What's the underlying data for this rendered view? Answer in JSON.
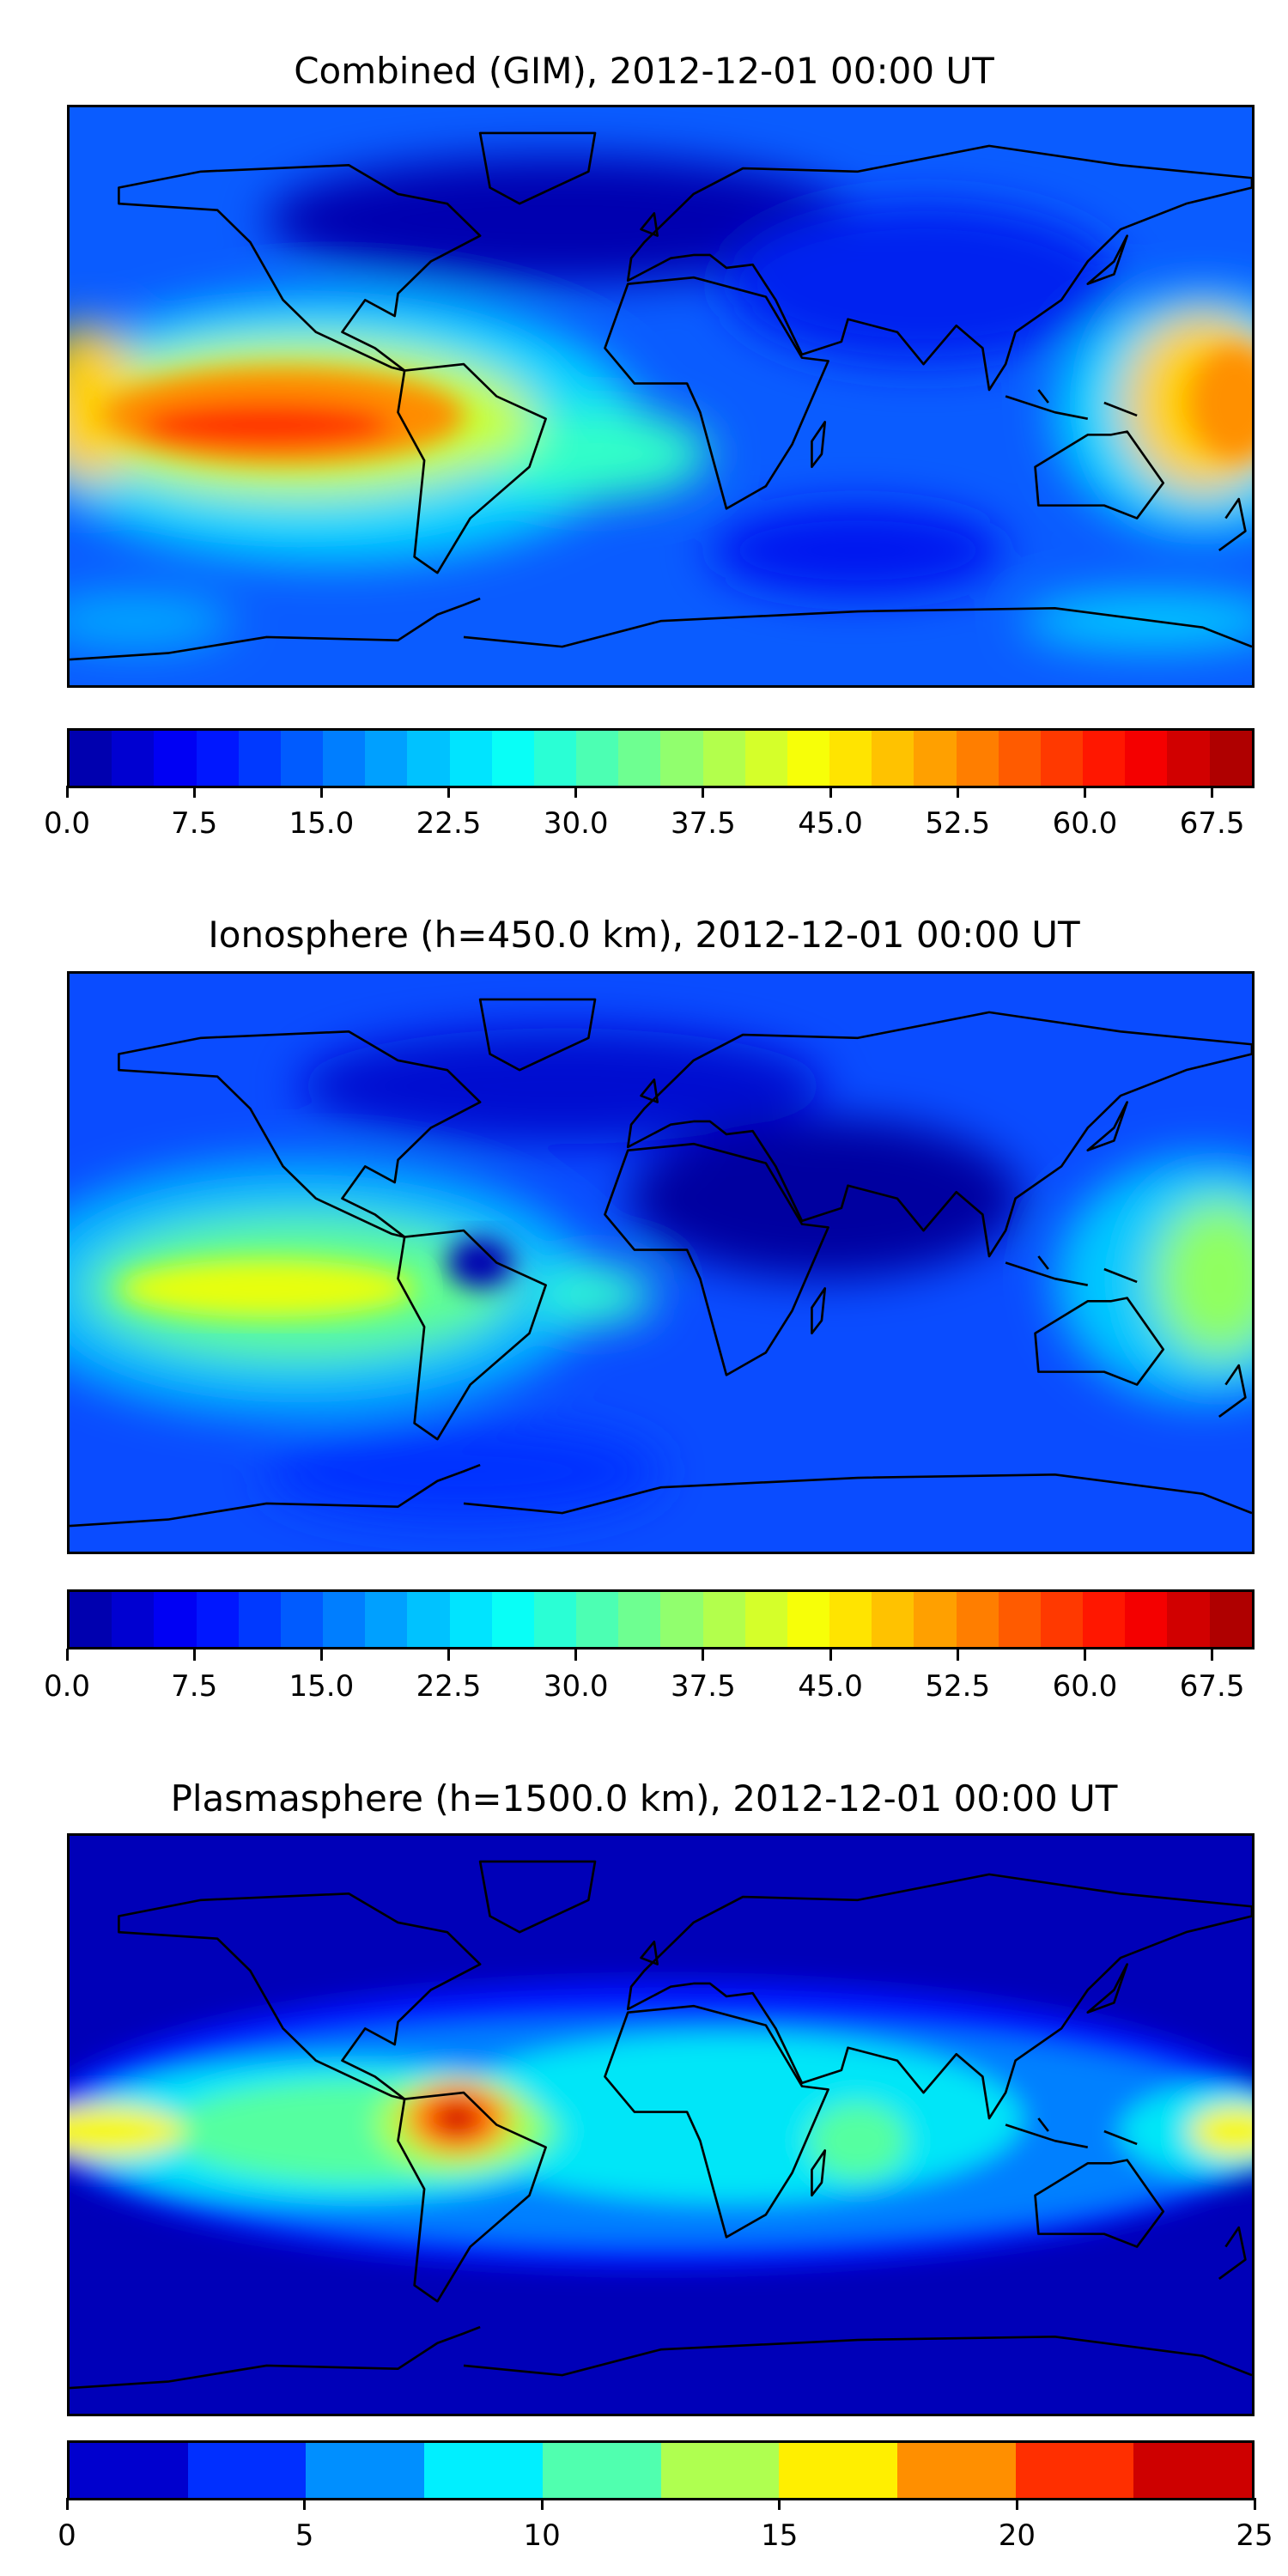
{
  "chart_data": [
    {
      "type": "heatmap",
      "subtype": "filled-contour world map",
      "title": "Combined (GIM), 2012-12-01 00:00 UT",
      "colormap": "jet",
      "colorbar": {
        "range": [
          0,
          70
        ],
        "step": 2.5,
        "ticks": [
          "0.0",
          "7.5",
          "15.0",
          "22.5",
          "30.0",
          "37.5",
          "45.0",
          "52.5",
          "60.0",
          "67.5"
        ]
      },
      "features": {
        "max_region": "central/eastern Pacific, ~10°S",
        "max_value_approx": 60,
        "min_region": "North Atlantic / Greenland",
        "min_value_approx": 5
      }
    },
    {
      "type": "heatmap",
      "subtype": "filled-contour world map",
      "title": "Ionosphere  (h=450.0 km), 2012-12-01 00:00 UT",
      "colormap": "jet",
      "colorbar": {
        "range": [
          0,
          70
        ],
        "step": 2.5,
        "ticks": [
          "0.0",
          "7.5",
          "15.0",
          "22.5",
          "30.0",
          "37.5",
          "45.0",
          "52.5",
          "60.0",
          "67.5"
        ]
      },
      "features": {
        "max_region": "central Pacific, ~10°S",
        "max_value_approx": 47,
        "min_region": "North Africa / Middle East",
        "min_value_approx": 2.5
      }
    },
    {
      "type": "heatmap",
      "subtype": "filled-contour world map",
      "title": "Plasmasphere (h=1500.0 km), 2012-12-01 00:00 UT",
      "colormap": "jet",
      "colorbar": {
        "range": [
          0,
          25
        ],
        "step": 2.5,
        "ticks": [
          "0",
          "5",
          "10",
          "15",
          "20",
          "25"
        ]
      },
      "features": {
        "max_region": "northern South America",
        "max_value_approx": 23,
        "min_region": "high latitudes",
        "min_value_approx": 1
      }
    }
  ]
}
